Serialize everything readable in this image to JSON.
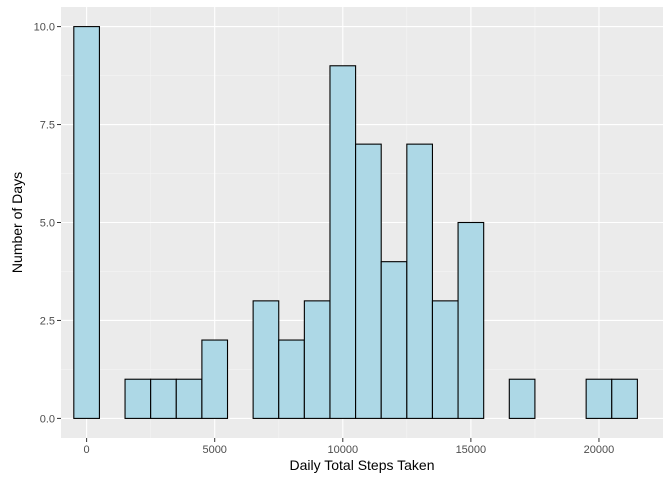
{
  "chart_data": {
    "type": "bar",
    "title": "",
    "xlabel": "Daily Total Steps Taken",
    "ylabel": "Number of Days",
    "xlim": [
      -1000,
      22500
    ],
    "ylim": [
      -0.5,
      10.5
    ],
    "bin_width": 1000,
    "x_ticks": [
      0,
      5000,
      10000,
      15000,
      20000
    ],
    "x_tick_labels": [
      "0",
      "5000",
      "10000",
      "15000",
      "20000"
    ],
    "y_ticks": [
      0,
      2.5,
      5,
      7.5,
      10
    ],
    "y_tick_labels": [
      "0.0",
      "2.5",
      "5.0",
      "7.5",
      "10.0"
    ],
    "bins": [
      {
        "start": -500,
        "end": 500,
        "count": 10
      },
      {
        "start": 500,
        "end": 1500,
        "count": 0
      },
      {
        "start": 1500,
        "end": 2500,
        "count": 1
      },
      {
        "start": 2500,
        "end": 3500,
        "count": 1
      },
      {
        "start": 3500,
        "end": 4500,
        "count": 1
      },
      {
        "start": 4500,
        "end": 5500,
        "count": 2
      },
      {
        "start": 5500,
        "end": 6500,
        "count": 0
      },
      {
        "start": 6500,
        "end": 7500,
        "count": 3
      },
      {
        "start": 7500,
        "end": 8500,
        "count": 2
      },
      {
        "start": 8500,
        "end": 9500,
        "count": 3
      },
      {
        "start": 9500,
        "end": 10500,
        "count": 9
      },
      {
        "start": 10500,
        "end": 11500,
        "count": 7
      },
      {
        "start": 11500,
        "end": 12500,
        "count": 4
      },
      {
        "start": 12500,
        "end": 13500,
        "count": 7
      },
      {
        "start": 13500,
        "end": 14500,
        "count": 3
      },
      {
        "start": 14500,
        "end": 15500,
        "count": 5
      },
      {
        "start": 15500,
        "end": 16500,
        "count": 0
      },
      {
        "start": 16500,
        "end": 17500,
        "count": 1
      },
      {
        "start": 17500,
        "end": 18500,
        "count": 0
      },
      {
        "start": 18500,
        "end": 19500,
        "count": 0
      },
      {
        "start": 19500,
        "end": 20500,
        "count": 1
      },
      {
        "start": 20500,
        "end": 21500,
        "count": 1
      }
    ],
    "grid": true,
    "legend": "none",
    "colors": {
      "bar_fill": "#add8e6",
      "bar_stroke": "#000000",
      "panel_background": "#ebebeb",
      "grid_major": "#ffffff",
      "grid_minor": "#f5f5f5",
      "tick_text": "#4d4d4d",
      "axis_title": "#000000"
    }
  }
}
